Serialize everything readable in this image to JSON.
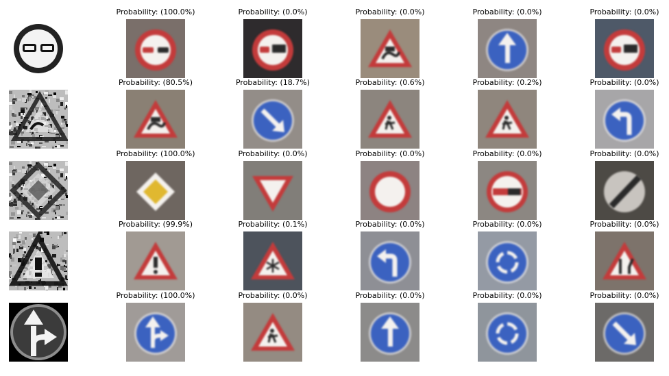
{
  "prob_format": "Probability: ({p}%)",
  "rows": [
    {
      "input": {
        "icon": "no-overtaking-icon",
        "style": "clean-bw"
      },
      "predictions": [
        {
          "probability": "100.0",
          "icon": "no-overtaking-icon",
          "background": "#7a6f6a"
        },
        {
          "probability": "0.0",
          "icon": "no-overtaking-trucks-icon",
          "background": "#2e2b2d"
        },
        {
          "probability": "0.0",
          "icon": "slippery-road-icon",
          "background": "#9a8c7c"
        },
        {
          "probability": "0.0",
          "icon": "ahead-only-icon",
          "background": "#8e8682"
        },
        {
          "probability": "0.0",
          "icon": "no-overtaking-trucks-icon",
          "background": "#4e5968"
        }
      ]
    },
    {
      "input": {
        "icon": "slippery-road-icon",
        "style": "noisy"
      },
      "predictions": [
        {
          "probability": "80.5",
          "icon": "slippery-road-icon",
          "background": "#8a8074"
        },
        {
          "probability": "18.7",
          "icon": "keep-right-icon",
          "background": "#938d88"
        },
        {
          "probability": "0.6",
          "icon": "road-work-icon",
          "background": "#8c857e"
        },
        {
          "probability": "0.2",
          "icon": "road-work-icon",
          "background": "#8f867d"
        },
        {
          "probability": "0.0",
          "icon": "turn-left-ahead-icon",
          "background": "#a7a6a8"
        }
      ]
    },
    {
      "input": {
        "icon": "priority-road-icon",
        "style": "noisy"
      },
      "predictions": [
        {
          "probability": "100.0",
          "icon": "priority-road-icon",
          "background": "#6e6660"
        },
        {
          "probability": "0.0",
          "icon": "yield-icon",
          "background": "#817e79"
        },
        {
          "probability": "0.0",
          "icon": "no-vehicles-icon",
          "background": "#8d8382"
        },
        {
          "probability": "0.0",
          "icon": "no-entry-icon",
          "background": "#8c8782"
        },
        {
          "probability": "0.0",
          "icon": "end-of-restrictions-icon",
          "background": "#4d4a45"
        }
      ]
    },
    {
      "input": {
        "icon": "general-caution-icon",
        "style": "noisy"
      },
      "predictions": [
        {
          "probability": "99.9",
          "icon": "general-caution-icon",
          "background": "#a19a93"
        },
        {
          "probability": "0.1",
          "icon": "snow-warning-icon",
          "background": "#4d535c"
        },
        {
          "probability": "0.0",
          "icon": "turn-left-ahead-icon",
          "background": "#8e8f95"
        },
        {
          "probability": "0.0",
          "icon": "roundabout-icon",
          "background": "#949aa4"
        },
        {
          "probability": "0.0",
          "icon": "road-narrows-right-icon",
          "background": "#7d736b"
        }
      ]
    },
    {
      "input": {
        "icon": "go-straight-or-right-icon",
        "style": "dark-bw"
      },
      "predictions": [
        {
          "probability": "100.0",
          "icon": "go-straight-or-right-icon",
          "background": "#a09b98"
        },
        {
          "probability": "0.0",
          "icon": "road-work-icon",
          "background": "#948b82"
        },
        {
          "probability": "0.0",
          "icon": "ahead-only-icon",
          "background": "#8c8b8a"
        },
        {
          "probability": "0.0",
          "icon": "roundabout-icon",
          "background": "#8f959c"
        },
        {
          "probability": "0.0",
          "icon": "keep-right-icon",
          "background": "#6c6a68"
        }
      ]
    }
  ]
}
